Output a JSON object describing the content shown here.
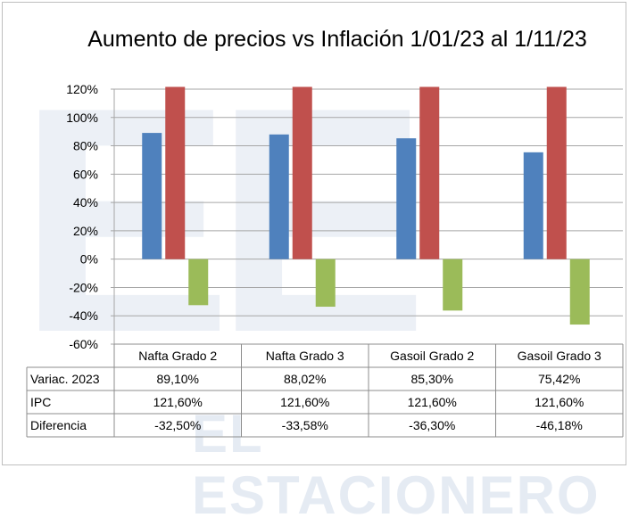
{
  "chart_data": {
    "type": "bar",
    "title": "Aumento de precios vs Inflación 1/01/23 al 1/11/23",
    "categories": [
      "Nafta Grado 2",
      "Nafta Grado 3",
      "Gasoil Grado 2",
      "Gasoil Grado 3"
    ],
    "series": [
      {
        "name": "Variac. 2023",
        "values": [
          89.1,
          88.02,
          85.3,
          75.42
        ],
        "labels": [
          "89,10%",
          "88,02%",
          "85,30%",
          "75,42%"
        ],
        "color": "#4f81bd"
      },
      {
        "name": "IPC",
        "values": [
          121.6,
          121.6,
          121.6,
          121.6
        ],
        "labels": [
          "121,60%",
          "121,60%",
          "121,60%",
          "121,60%"
        ],
        "color": "#c0504d"
      },
      {
        "name": "Diferencia",
        "values": [
          -32.5,
          -33.58,
          -36.3,
          -46.18
        ],
        "labels": [
          "-32,50%",
          "-33,58%",
          "-36,30%",
          "-46,18%"
        ],
        "color": "#9bbb59"
      }
    ],
    "ylim": [
      -60,
      120
    ],
    "yticks": [
      "-60%",
      "-40%",
      "-20%",
      "0%",
      "20%",
      "40%",
      "60%",
      "80%",
      "100%",
      "120%"
    ],
    "grid": true,
    "legend": "data-table"
  },
  "watermark": {
    "letters": "EE",
    "text": "EL ESTACIONERO"
  }
}
